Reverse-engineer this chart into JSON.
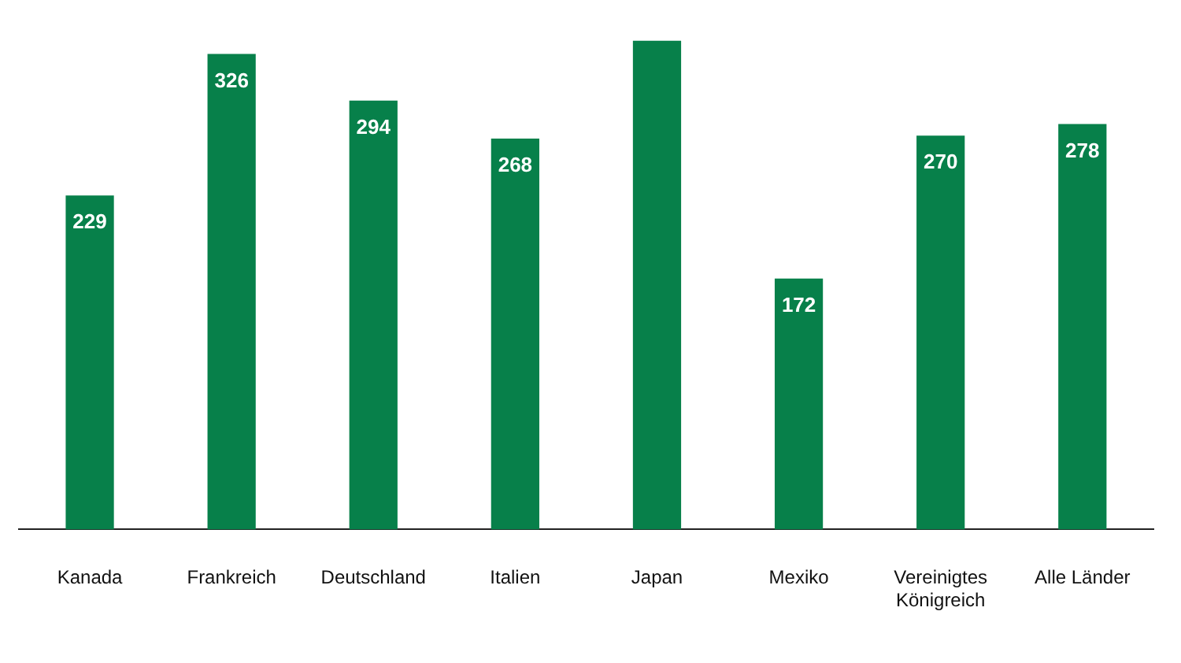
{
  "chart_data": {
    "type": "bar",
    "categories": [
      "Kanada",
      "Frankreich",
      "Deutschland",
      "Italien",
      "Japan",
      "Mexiko",
      "Vereinigtes Königreich",
      "Alle Länder"
    ],
    "values": [
      229,
      326,
      294,
      268,
      335,
      172,
      270,
      278
    ],
    "value_labels": [
      "229",
      "326",
      "294",
      "268",
      null,
      "172",
      "270",
      "278"
    ],
    "color": "#07804a",
    "tick_labels": "x",
    "grid": false,
    "legend": false
  }
}
